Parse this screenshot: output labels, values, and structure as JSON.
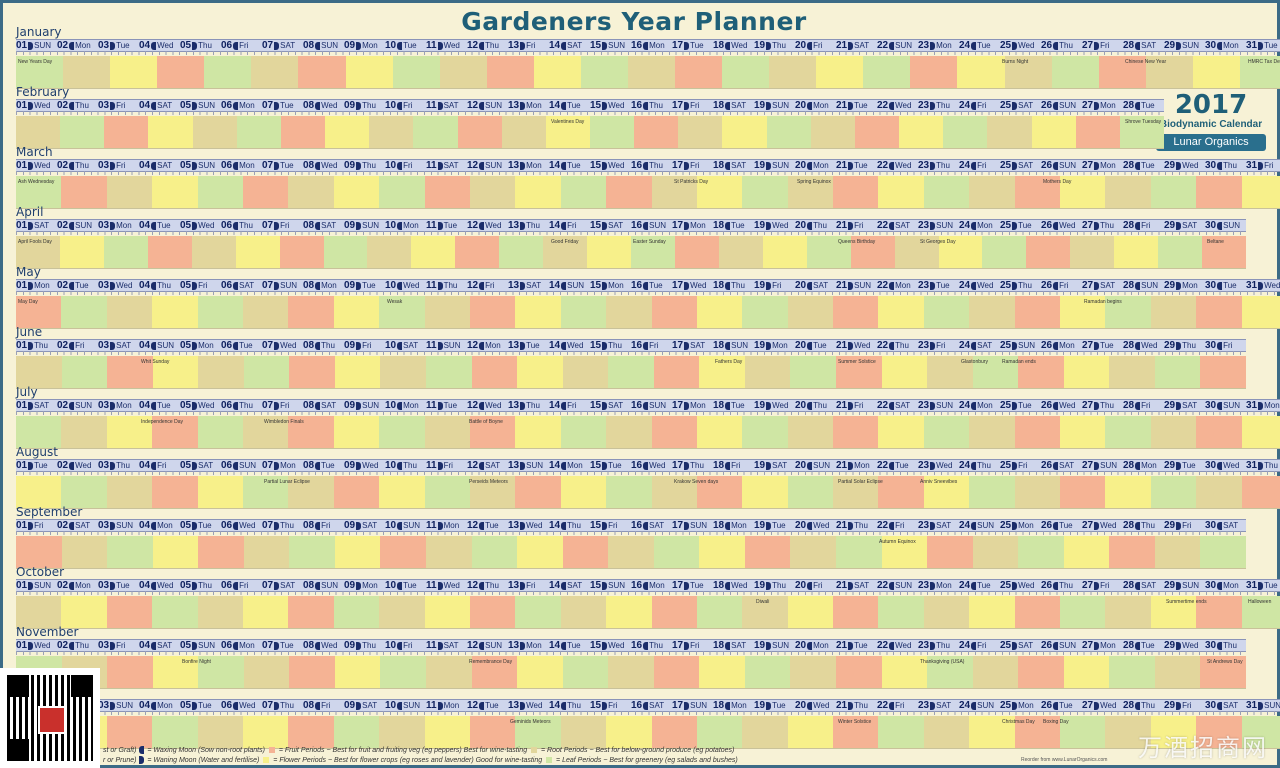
{
  "title": "Gardeners Year Planner",
  "logo": {
    "year": "2017",
    "subtitle": "Biodynamic Calendar",
    "brand": "Lunar Organics"
  },
  "colors": {
    "fruit": "#f5b394",
    "flower": "#f7f08a",
    "root": "#e2d69c",
    "leaf": "#cfe6a4",
    "header": "#cfd6ec"
  },
  "months": [
    {
      "name": "January",
      "days": 31,
      "start": 0,
      "segs": [
        "leaf",
        "root",
        "flower",
        "fruit",
        "leaf",
        "root",
        "fruit",
        "flower",
        "leaf",
        "root",
        "fruit",
        "flower",
        "leaf",
        "root",
        "fruit",
        "leaf",
        "root",
        "flower",
        "leaf",
        "fruit",
        "flower",
        "root",
        "leaf",
        "fruit",
        "root",
        "flower",
        "leaf"
      ],
      "notes": [
        {
          "d": 1,
          "t": "New Years Day"
        },
        {
          "d": 25,
          "t": "Burns Night"
        },
        {
          "d": 28,
          "t": "Chinese New Year"
        },
        {
          "d": 31,
          "t": "HMRC Tax Deadline"
        }
      ]
    },
    {
      "name": "February",
      "days": 28,
      "start": 3,
      "segs": [
        "root",
        "leaf",
        "fruit",
        "flower",
        "root",
        "leaf",
        "fruit",
        "flower",
        "root",
        "leaf",
        "fruit",
        "root",
        "flower",
        "leaf",
        "fruit",
        "root",
        "flower",
        "leaf",
        "root",
        "fruit",
        "flower",
        "leaf",
        "root",
        "flower",
        "fruit",
        "leaf"
      ],
      "notes": [
        {
          "d": 14,
          "t": "Valentines Day"
        },
        {
          "d": 28,
          "t": "Shrove Tuesday"
        }
      ]
    },
    {
      "name": "March",
      "days": 31,
      "start": 3,
      "segs": [
        "leaf",
        "fruit",
        "root",
        "flower",
        "leaf",
        "fruit",
        "root",
        "flower",
        "leaf",
        "fruit",
        "root",
        "flower",
        "leaf",
        "fruit",
        "root",
        "flower",
        "leaf",
        "root",
        "fruit",
        "flower",
        "leaf",
        "root",
        "fruit",
        "flower",
        "root",
        "leaf",
        "fruit",
        "flower"
      ],
      "notes": [
        {
          "d": 1,
          "t": "Ash Wednesday"
        },
        {
          "d": 17,
          "t": "St Patricks Day"
        },
        {
          "d": 20,
          "t": "Spring Equinox"
        },
        {
          "d": 26,
          "t": "Mothers Day"
        }
      ]
    },
    {
      "name": "April",
      "days": 30,
      "start": 6,
      "segs": [
        "root",
        "flower",
        "leaf",
        "fruit",
        "root",
        "flower",
        "fruit",
        "leaf",
        "root",
        "flower",
        "fruit",
        "leaf",
        "root",
        "flower",
        "leaf",
        "fruit",
        "root",
        "flower",
        "leaf",
        "fruit",
        "root",
        "flower",
        "leaf",
        "fruit",
        "root",
        "flower",
        "leaf",
        "fruit"
      ],
      "notes": [
        {
          "d": 1,
          "t": "April Fools Day"
        },
        {
          "d": 14,
          "t": "Good Friday"
        },
        {
          "d": 16,
          "t": "Easter Sunday"
        },
        {
          "d": 21,
          "t": "Queens Birthday"
        },
        {
          "d": 23,
          "t": "St Georges Day"
        },
        {
          "d": 30,
          "t": "Beltane"
        }
      ]
    },
    {
      "name": "May",
      "days": 31,
      "start": 1,
      "segs": [
        "fruit",
        "leaf",
        "root",
        "flower",
        "leaf",
        "root",
        "fruit",
        "flower",
        "leaf",
        "root",
        "fruit",
        "flower",
        "leaf",
        "root",
        "fruit",
        "flower",
        "leaf",
        "root",
        "fruit",
        "flower",
        "leaf",
        "root",
        "fruit",
        "flower",
        "leaf",
        "root",
        "fruit",
        "flower"
      ],
      "notes": [
        {
          "d": 1,
          "t": "May Day"
        },
        {
          "d": 10,
          "t": "Wesak"
        },
        {
          "d": 27,
          "t": "Ramadan begins"
        }
      ]
    },
    {
      "name": "June",
      "days": 30,
      "start": 4,
      "segs": [
        "root",
        "leaf",
        "fruit",
        "flower",
        "root",
        "leaf",
        "fruit",
        "flower",
        "root",
        "leaf",
        "fruit",
        "flower",
        "root",
        "leaf",
        "fruit",
        "flower",
        "root",
        "leaf",
        "fruit",
        "flower",
        "root",
        "leaf",
        "fruit",
        "flower",
        "root",
        "leaf",
        "fruit"
      ],
      "notes": [
        {
          "d": 4,
          "t": "Whit Sunday"
        },
        {
          "d": 18,
          "t": "Fathers Day"
        },
        {
          "d": 21,
          "t": "Summer Solstice"
        },
        {
          "d": 24,
          "t": "Glastonbury"
        },
        {
          "d": 25,
          "t": "Ramadan ends"
        }
      ]
    },
    {
      "name": "July",
      "days": 31,
      "start": 6,
      "segs": [
        "leaf",
        "root",
        "flower",
        "fruit",
        "leaf",
        "root",
        "fruit",
        "flower",
        "leaf",
        "root",
        "fruit",
        "flower",
        "leaf",
        "root",
        "fruit",
        "flower",
        "leaf",
        "root",
        "fruit",
        "flower",
        "leaf",
        "root",
        "fruit",
        "flower",
        "leaf",
        "root",
        "fruit",
        "flower"
      ],
      "notes": [
        {
          "d": 4,
          "t": "Independence Day"
        },
        {
          "d": 7,
          "t": "Wimbledon Finals"
        },
        {
          "d": 12,
          "t": "Battle of Boyne"
        }
      ]
    },
    {
      "name": "August",
      "days": 31,
      "start": 2,
      "segs": [
        "flower",
        "leaf",
        "root",
        "fruit",
        "flower",
        "leaf",
        "root",
        "fruit",
        "flower",
        "leaf",
        "root",
        "fruit",
        "flower",
        "leaf",
        "root",
        "fruit",
        "flower",
        "leaf",
        "root",
        "fruit",
        "flower",
        "leaf",
        "root",
        "fruit",
        "flower",
        "leaf",
        "root",
        "fruit"
      ],
      "notes": [
        {
          "d": 7,
          "t": "Partial Lunar Eclipse"
        },
        {
          "d": 12,
          "t": "Perseids Meteors"
        },
        {
          "d": 17,
          "t": "Krakow Seven days"
        },
        {
          "d": 21,
          "t": "Partial Solar Eclipse"
        },
        {
          "d": 23,
          "t": "Anniv Sneevibes"
        }
      ]
    },
    {
      "name": "September",
      "days": 30,
      "start": 5,
      "segs": [
        "fruit",
        "root",
        "leaf",
        "flower",
        "fruit",
        "root",
        "leaf",
        "flower",
        "fruit",
        "root",
        "leaf",
        "flower",
        "fruit",
        "root",
        "leaf",
        "flower",
        "fruit",
        "root",
        "leaf",
        "flower",
        "fruit",
        "root",
        "leaf",
        "flower",
        "fruit",
        "root",
        "leaf"
      ],
      "notes": [
        {
          "d": 22,
          "t": "Autumn Equinox"
        }
      ]
    },
    {
      "name": "October",
      "days": 31,
      "start": 0,
      "segs": [
        "root",
        "flower",
        "fruit",
        "leaf",
        "root",
        "flower",
        "fruit",
        "leaf",
        "root",
        "flower",
        "fruit",
        "leaf",
        "root",
        "flower",
        "fruit",
        "leaf",
        "root",
        "flower",
        "fruit",
        "leaf",
        "root",
        "flower",
        "fruit",
        "leaf",
        "root",
        "flower",
        "fruit",
        "leaf"
      ],
      "notes": [
        {
          "d": 19,
          "t": "Diwali"
        },
        {
          "d": 29,
          "t": "Summertime ends"
        },
        {
          "d": 31,
          "t": "Halloween"
        }
      ]
    },
    {
      "name": "November",
      "days": 30,
      "start": 3,
      "segs": [
        "leaf",
        "root",
        "fruit",
        "flower",
        "leaf",
        "root",
        "fruit",
        "flower",
        "leaf",
        "root",
        "fruit",
        "flower",
        "leaf",
        "root",
        "fruit",
        "flower",
        "leaf",
        "root",
        "fruit",
        "flower",
        "leaf",
        "root",
        "fruit",
        "flower",
        "leaf",
        "root",
        "fruit"
      ],
      "notes": [
        {
          "d": 5,
          "t": "Bonfire Night"
        },
        {
          "d": 12,
          "t": "Remembrance Day"
        },
        {
          "d": 23,
          "t": "Thanksgiving (USA)"
        },
        {
          "d": 30,
          "t": "St Andrews Day"
        }
      ]
    },
    {
      "name": "December",
      "days": 31,
      "start": 5,
      "segs": [
        "root",
        "flower",
        "fruit",
        "leaf",
        "root",
        "flower",
        "fruit",
        "leaf",
        "root",
        "flower",
        "fruit",
        "leaf",
        "root",
        "flower",
        "fruit",
        "leaf",
        "root",
        "flower",
        "fruit",
        "leaf",
        "root",
        "flower",
        "fruit",
        "leaf",
        "root",
        "flower",
        "fruit",
        "leaf"
      ],
      "notes": [
        {
          "d": 13,
          "t": "Geminids Meteors"
        },
        {
          "d": 21,
          "t": "Winter Solstice"
        },
        {
          "d": 25,
          "t": "Christmas Day"
        },
        {
          "d": 26,
          "t": "Boxing Day"
        }
      ]
    }
  ],
  "weekdays": [
    "SUN",
    "Mon",
    "Tue",
    "Wed",
    "Thu",
    "Fri",
    "SAT"
  ],
  "legend": {
    "row1": [
      "st or Graft)",
      "= Waxing Moon (Sow non-root plants)",
      "= Fruit Periods ~ Best for fruit and fruiting veg (eg peppers)",
      "Best for wine-tasting",
      "= Root Periods ~ Best for below-ground produce (eg potatoes)"
    ],
    "row2": [
      "r or Prune)",
      "= Waning Moon (Water and fertilise)",
      "= Flower Periods ~ Best for flower crops (eg roses and lavender) Good for wine-tasting",
      "= Leaf Periods ~ Best for greenery (eg salads and bushes)"
    ]
  },
  "footer": "Reorder from www.LunarOrganics.com",
  "watermark": "万酒招商网"
}
